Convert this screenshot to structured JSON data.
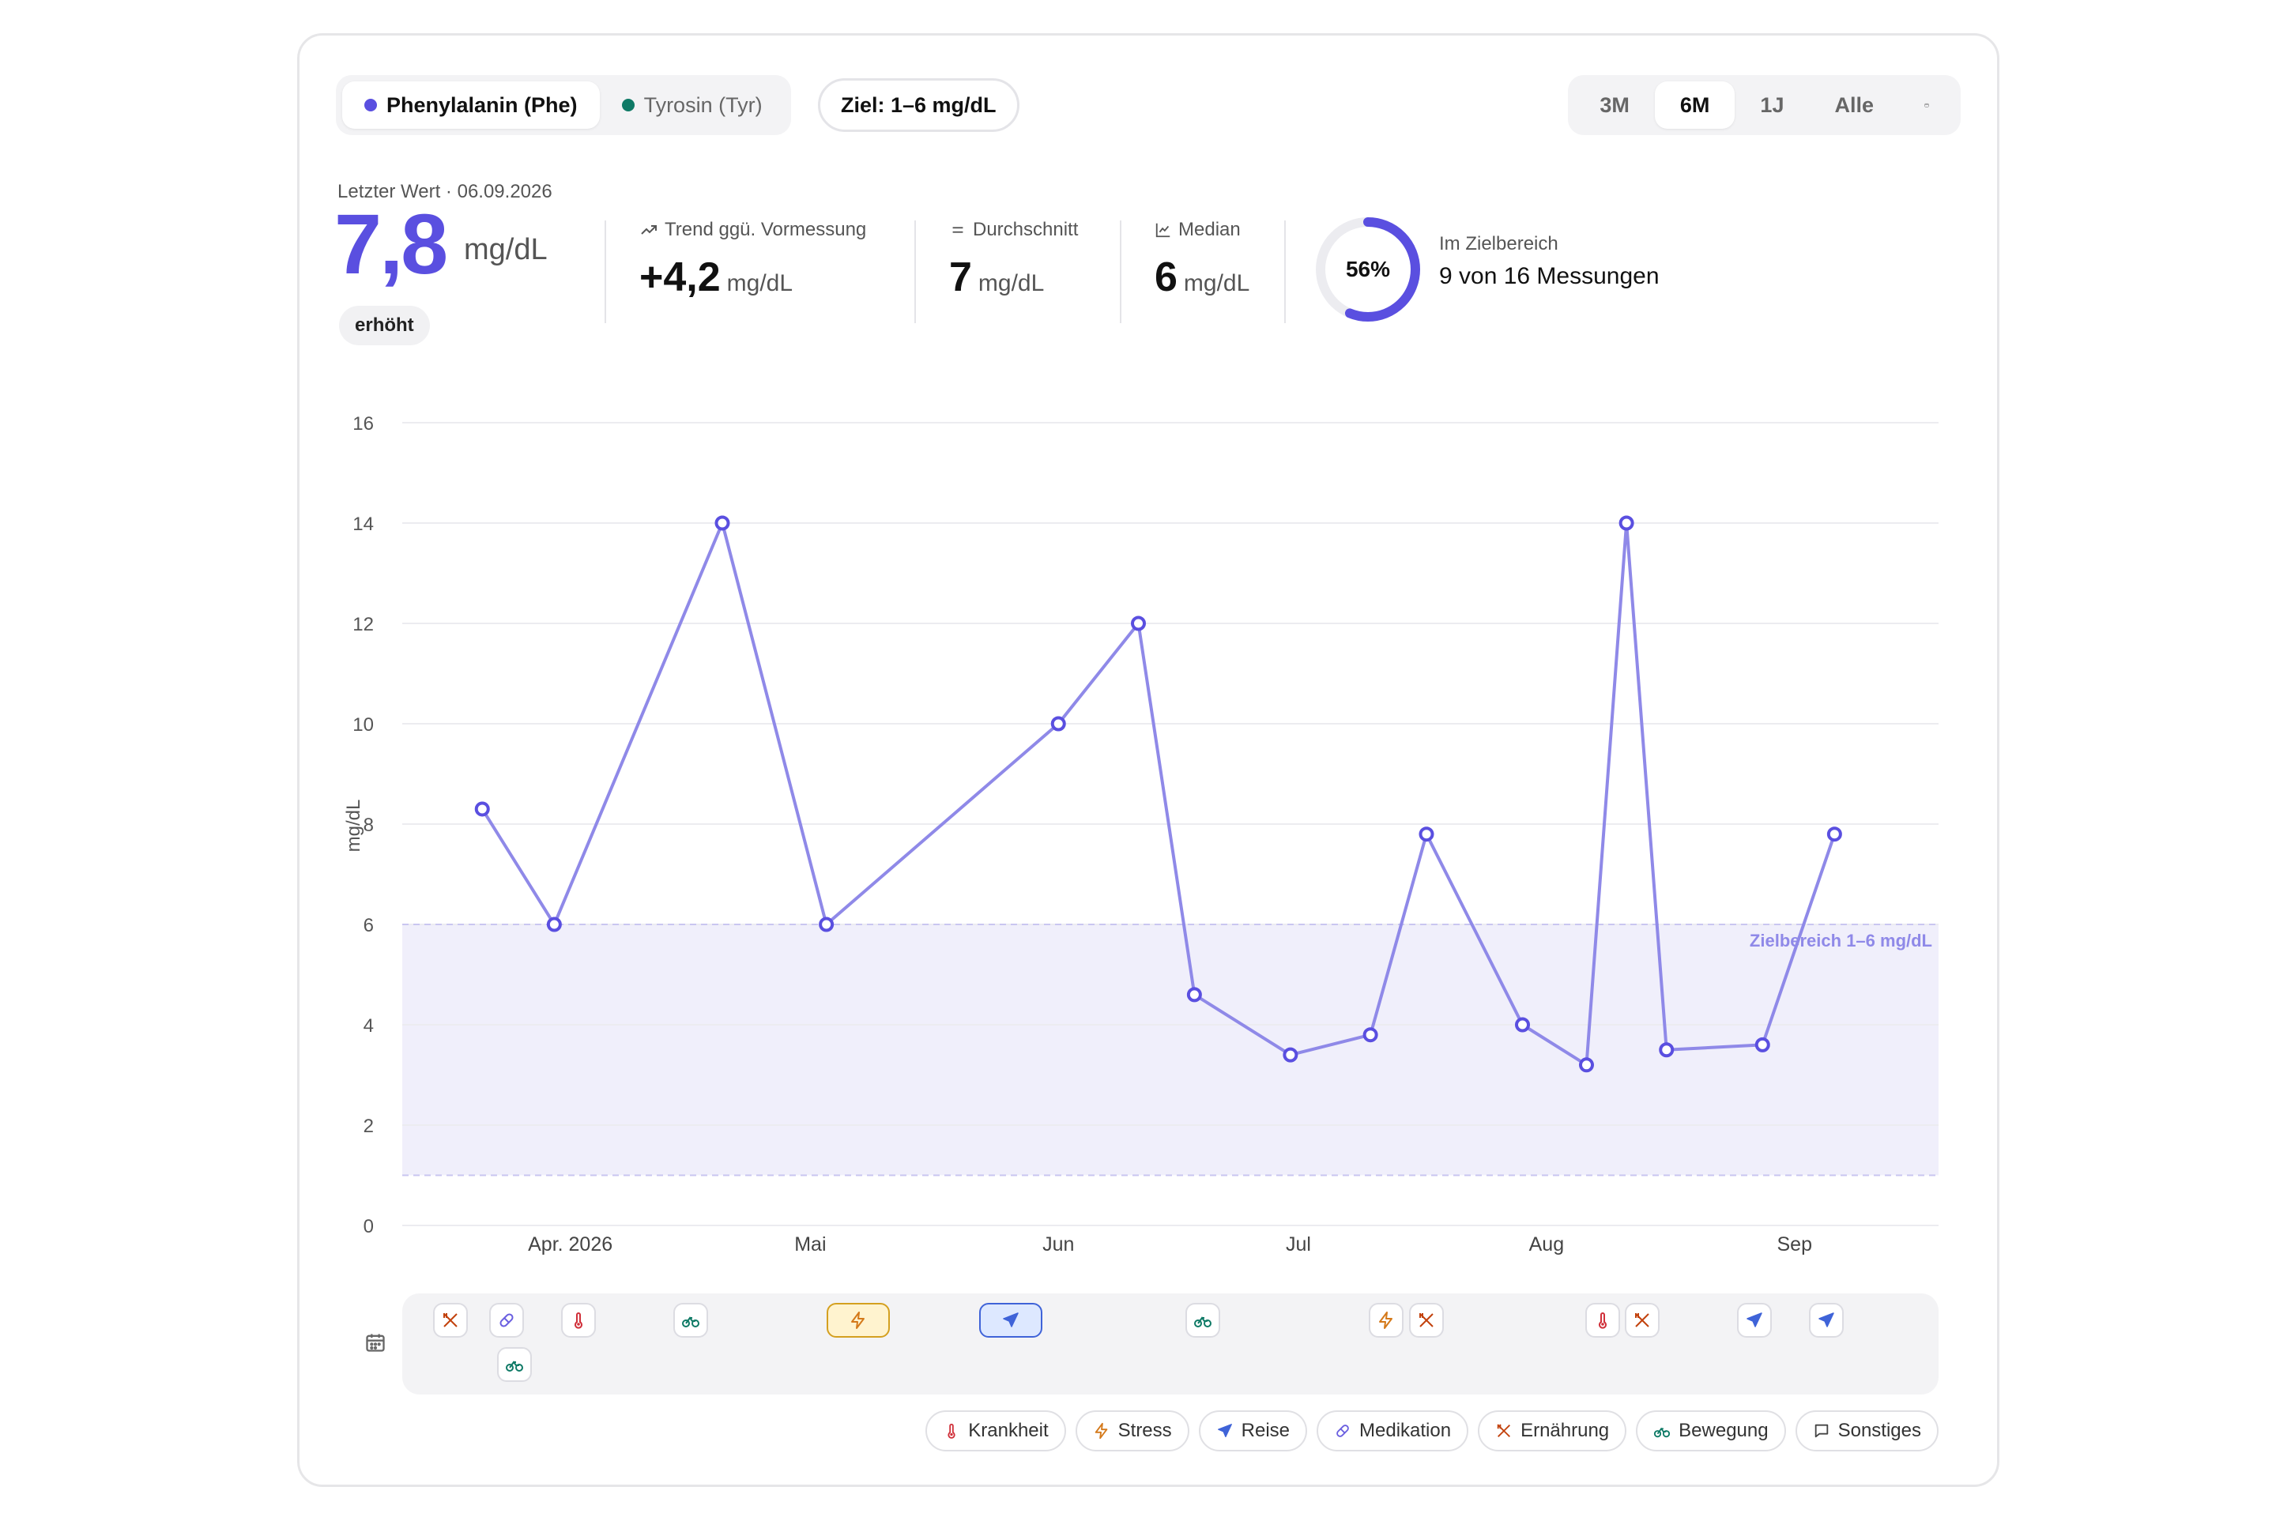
{
  "tabs": [
    {
      "label": "Phenylalanin (Phe)",
      "dot_color": "#5a4fe0",
      "active": true
    },
    {
      "label": "Tyrosin (Tyr)",
      "dot_color": "#0f7a66",
      "active": false
    }
  ],
  "target_pill": "Ziel: 1–6 mg/dL",
  "ranges": [
    "3M",
    "6M",
    "1J",
    "Alle"
  ],
  "active_range": "6M",
  "stats": {
    "last_label": "Letzter Wert · 06.09.2026",
    "last_value": "7,8",
    "last_unit": "mg/dL",
    "status_badge": "erhöht",
    "trend_label": "Trend ggü. Vormessung",
    "trend_value": "+4,2",
    "trend_unit": "mg/dL",
    "avg_label": "Durchschnitt",
    "avg_value": "7",
    "avg_unit": "mg/dL",
    "median_label": "Median",
    "median_value": "6",
    "median_unit": "mg/dL",
    "in_range_percent": "56%",
    "in_range_fraction": 0.5625,
    "in_range_label": "Im Zielbereich",
    "in_range_text": "9 von 16 Messungen"
  },
  "chart_data": {
    "type": "line",
    "ylabel": "mg/dL",
    "ylim": [
      0,
      16
    ],
    "yticks": [
      "0",
      "2",
      "4",
      "6",
      "8",
      "10",
      "12",
      "14",
      "16"
    ],
    "x_tick_labels": [
      {
        "label": "Apr. 2026",
        "date": "2026-04-01"
      },
      {
        "label": "Mai",
        "date": "2026-05-01"
      },
      {
        "label": "Jun",
        "date": "2026-06-01"
      },
      {
        "label": "Jul",
        "date": "2026-07-01"
      },
      {
        "label": "Aug",
        "date": "2026-08-01"
      },
      {
        "label": "Sep",
        "date": "2026-09-01"
      }
    ],
    "x_range": [
      "2026-03-11",
      "2026-09-19"
    ],
    "target_band": {
      "low": 1,
      "high": 6,
      "label": "Zielbereich 1–6 mg/dL"
    },
    "series": [
      {
        "color": "#8f89e8",
        "marker_color": "#5a4fe0",
        "points": [
          {
            "x": "2026-03-21",
            "y": 8.3
          },
          {
            "x": "2026-03-30",
            "y": 6.0
          },
          {
            "x": "2026-04-20",
            "y": 14.0
          },
          {
            "x": "2026-05-03",
            "y": 6.0
          },
          {
            "x": "2026-06-01",
            "y": 10.0
          },
          {
            "x": "2026-06-11",
            "y": 12.0
          },
          {
            "x": "2026-06-18",
            "y": 4.6
          },
          {
            "x": "2026-06-30",
            "y": 3.4
          },
          {
            "x": "2026-07-10",
            "y": 3.8
          },
          {
            "x": "2026-07-17",
            "y": 7.8
          },
          {
            "x": "2026-07-29",
            "y": 4.0
          },
          {
            "x": "2026-08-06",
            "y": 3.2
          },
          {
            "x": "2026-08-11",
            "y": 14.0
          },
          {
            "x": "2026-08-16",
            "y": 3.5
          },
          {
            "x": "2026-08-28",
            "y": 3.6
          },
          {
            "x": "2026-09-06",
            "y": 7.8
          }
        ]
      }
    ]
  },
  "events": [
    {
      "type": "ernaehrung",
      "date": "2026-03-17"
    },
    {
      "type": "medikation",
      "date": "2026-03-24"
    },
    {
      "type": "bewegung",
      "date": "2026-03-25"
    },
    {
      "type": "krankheit",
      "date": "2026-04-02"
    },
    {
      "type": "bewegung",
      "date": "2026-04-16"
    },
    {
      "type": "stress",
      "date": "2026-05-07",
      "highlighted": true
    },
    {
      "type": "reise",
      "date": "2026-05-26",
      "highlighted": true
    },
    {
      "type": "bewegung",
      "date": "2026-06-19"
    },
    {
      "type": "stress",
      "date": "2026-07-12"
    },
    {
      "type": "ernaehrung",
      "date": "2026-07-17"
    },
    {
      "type": "krankheit",
      "date": "2026-08-08"
    },
    {
      "type": "ernaehrung",
      "date": "2026-08-13"
    },
    {
      "type": "reise",
      "date": "2026-08-27"
    },
    {
      "type": "reise",
      "date": "2026-09-05"
    }
  ],
  "legend": [
    {
      "key": "krankheit",
      "label": "Krankheit",
      "color": "#d0303a"
    },
    {
      "key": "stress",
      "label": "Stress",
      "color": "#d4791a"
    },
    {
      "key": "reise",
      "label": "Reise",
      "color": "#3f63d8"
    },
    {
      "key": "medikation",
      "label": "Medikation",
      "color": "#6a5fe0"
    },
    {
      "key": "ernaehrung",
      "label": "Ernährung",
      "color": "#c2410c"
    },
    {
      "key": "bewegung",
      "label": "Bewegung",
      "color": "#0f7a66"
    },
    {
      "key": "sonstiges",
      "label": "Sonstiges",
      "color": "#444444"
    }
  ],
  "colors": {
    "accent": "#5a4fe0",
    "band_fill": "#f0effb",
    "band_line": "#c9c6f0",
    "grid": "#ececf0"
  }
}
